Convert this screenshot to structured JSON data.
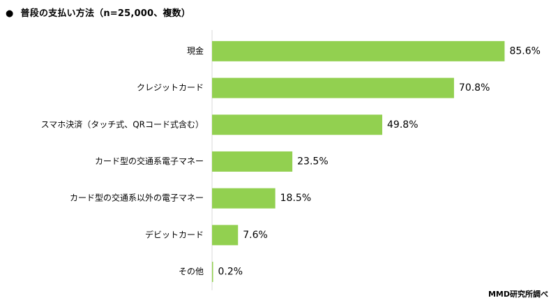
{
  "title": "普段の支払い方法（n=25,000、複数）",
  "title_bullet": "●",
  "source": "MMD研究所調べ",
  "colors": {
    "bar": "#92d050",
    "axis": "#d9d9d9"
  },
  "chart_data": {
    "type": "bar",
    "orientation": "horizontal",
    "title": "普段の支払い方法（n=25,000、複数）",
    "categories": [
      "現金",
      "クレジットカード",
      "スマホ決済（タッチ式、QRコード式含む）",
      "カード型の交通系電子マネー",
      "カード型の交通系以外の電子マネー",
      "デビットカード",
      "その他"
    ],
    "values": [
      85.6,
      70.8,
      49.8,
      23.5,
      18.5,
      7.6,
      0.2
    ],
    "value_labels": [
      "85.6%",
      "70.8%",
      "49.8%",
      "23.5%",
      "18.5%",
      "7.6%",
      "0.2%"
    ],
    "unit": "%",
    "xlim": [
      0,
      100
    ],
    "grid": false,
    "legend": "none"
  }
}
